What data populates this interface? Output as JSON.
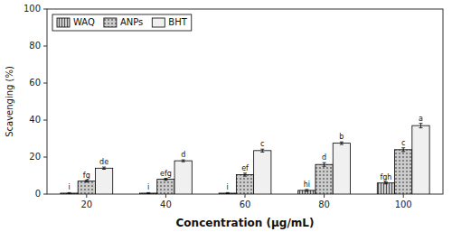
{
  "chart_data": {
    "type": "bar",
    "xlabel": "Concentration (μg/mL)",
    "ylabel": "Scavenging (%)",
    "categories": [
      "20",
      "40",
      "60",
      "80",
      "100"
    ],
    "ylim": [
      0,
      100
    ],
    "yticks": [
      0,
      20,
      40,
      60,
      80,
      100
    ],
    "legend": "upper left",
    "series": [
      {
        "name": "WAQ",
        "color": "#cccccc",
        "values": [
          0.5,
          0.5,
          0.5,
          2.0,
          6.0
        ],
        "errors": [
          0.3,
          0.3,
          0.3,
          0.5,
          0.5
        ],
        "annotations": [
          "i",
          "i",
          "i",
          "hi",
          "fgh"
        ]
      },
      {
        "name": "ANPs",
        "color": "#cccccc",
        "values": [
          7.0,
          8.0,
          10.5,
          16.0,
          24.0
        ],
        "errors": [
          0.5,
          0.5,
          0.8,
          1.0,
          1.0
        ],
        "annotations": [
          "fg",
          "efg",
          "ef",
          "d",
          "c"
        ]
      },
      {
        "name": "BHT",
        "color": "#f0f0f0",
        "values": [
          14.0,
          18.0,
          23.5,
          27.5,
          37.0
        ],
        "errors": [
          0.6,
          0.5,
          0.8,
          0.7,
          1.2
        ],
        "annotations": [
          "de",
          "d",
          "c",
          "b",
          "a"
        ]
      }
    ]
  }
}
